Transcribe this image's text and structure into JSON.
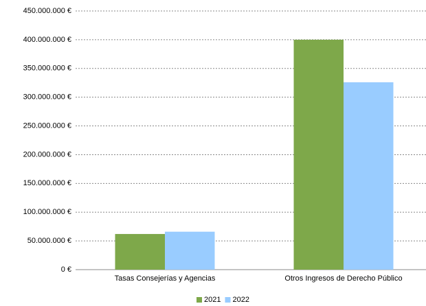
{
  "chart_data": {
    "type": "bar",
    "categories": [
      "Tasas Consejerías y Agencias",
      "Otros Ingresos de Derecho Público"
    ],
    "series": [
      {
        "name": "2021",
        "color": "#7ea84a",
        "values": [
          62000000,
          400000000
        ]
      },
      {
        "name": "2022",
        "color": "#99ccff",
        "values": [
          66000000,
          326000000
        ]
      }
    ],
    "ylim": [
      0,
      450000000
    ],
    "yticks": [
      {
        "value": 0,
        "label": "0 €"
      },
      {
        "value": 50000000,
        "label": "50.000.000 €"
      },
      {
        "value": 100000000,
        "label": "100.000.000 €"
      },
      {
        "value": 150000000,
        "label": "150.000.000 €"
      },
      {
        "value": 200000000,
        "label": "200.000.000 €"
      },
      {
        "value": 250000000,
        "label": "250.000.000 €"
      },
      {
        "value": 300000000,
        "label": "300.000.000 €"
      },
      {
        "value": 350000000,
        "label": "350.000.000 €"
      },
      {
        "value": 400000000,
        "label": "400.000.000 €"
      },
      {
        "value": 450000000,
        "label": "450.000.000 €"
      }
    ],
    "grid": true,
    "legend": "bottom"
  }
}
